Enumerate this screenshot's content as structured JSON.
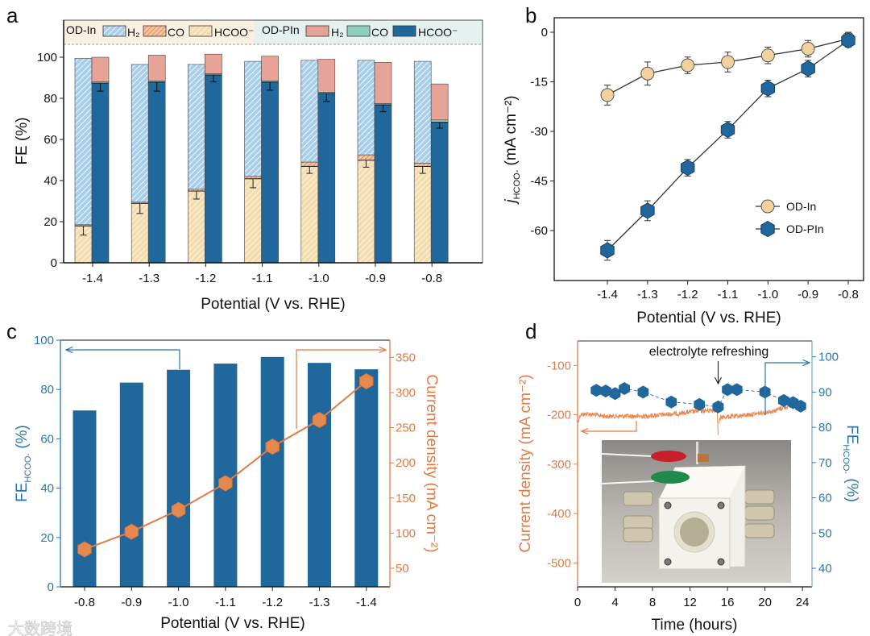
{
  "panel_labels": [
    "a",
    "b",
    "c",
    "d"
  ],
  "watermark": "大数跨境",
  "chart_data": [
    {
      "id": "a",
      "type": "bar",
      "stacked": true,
      "title": "",
      "xlabel": "Potential (V vs. RHE)",
      "ylabel": "FE (%)",
      "ylim": [
        0,
        118
      ],
      "yticks": [
        0,
        20,
        40,
        60,
        80,
        100
      ],
      "categories": [
        "-1.4",
        "-1.3",
        "-1.2",
        "-1.1",
        "-1.0",
        "-0.9",
        "-0.8"
      ],
      "legend_position": "top",
      "groups": [
        {
          "name": "OD-In",
          "series": [
            {
              "name": "HCOO⁻",
              "values": [
                18,
                29,
                35,
                41,
                47,
                50,
                47
              ],
              "error": [
                4.5,
                5,
                4,
                4.5,
                3.5,
                3.5,
                3.5
              ],
              "color": "#f3dcae"
            },
            {
              "name": "CO",
              "values": [
                0.5,
                0.5,
                0.8,
                1,
                2,
                2.5,
                1.5
              ],
              "color": "#eea57a"
            },
            {
              "name": "H₂",
              "values": [
                81,
                67,
                60.7,
                56,
                49.5,
                46,
                49.5
              ],
              "color": "#a9cfe8"
            }
          ]
        },
        {
          "name": "OD-PIn",
          "series": [
            {
              "name": "HCOO⁻",
              "values": [
                87.5,
                88,
                91.5,
                88,
                82.5,
                77,
                68.5
              ],
              "error": [
                4,
                4.5,
                3.5,
                4,
                4,
                3.5,
                3
              ],
              "color": "#20679c"
            },
            {
              "name": "CO",
              "values": [
                0.5,
                0.5,
                0.5,
                0.5,
                0.5,
                0.5,
                1
              ],
              "color": "#8fd0bd"
            },
            {
              "name": "H₂",
              "values": [
                12,
                12.5,
                9.5,
                12,
                16,
                20,
                17.5
              ],
              "color": "#e8a398"
            }
          ]
        }
      ]
    },
    {
      "id": "b",
      "type": "line",
      "title": "",
      "xlabel": "Potential (V vs. RHE)",
      "ylabel": {
        "main": "j",
        "sub": "HCOO-",
        "unit": " (mA cm⁻²)"
      },
      "x": [
        -1.4,
        -1.3,
        -1.2,
        -1.1,
        -1.0,
        -0.9,
        -0.8
      ],
      "xtick_labels": [
        "-1.4",
        "-1.3",
        "-1.2",
        "-1.1",
        "-1.0",
        "-0.9",
        "-0.8"
      ],
      "ylim": [
        -75,
        4.5
      ],
      "yticks": [
        0,
        -15,
        -30,
        -45,
        -60
      ],
      "legend_position": "center-right",
      "series": [
        {
          "name": "OD-In",
          "marker": "circle",
          "color": "#f2d19d",
          "values": [
            -19,
            -12.5,
            -10,
            -9,
            -7,
            -5,
            -2
          ],
          "error": [
            3,
            3.5,
            2.5,
            3,
            2.5,
            2.5,
            2
          ]
        },
        {
          "name": "OD-PIn",
          "marker": "hexagon",
          "color": "#20679c",
          "values": [
            -66,
            -54,
            -41,
            -29.5,
            -17,
            -11,
            -2.5
          ],
          "error": [
            3,
            3,
            2.5,
            2.5,
            2.5,
            2.5,
            2
          ]
        }
      ]
    },
    {
      "id": "c",
      "type": "bar+line",
      "title": "",
      "xlabel": "Potential (V vs. RHE)",
      "categories": [
        "-0.8",
        "-0.9",
        "-1.0",
        "-1.1",
        "-1.2",
        "-1.3",
        "-1.4"
      ],
      "left_axis": {
        "label_main": "FE",
        "label_sub": "HCOO-",
        "label_unit": " (%)",
        "ylim": [
          0,
          100
        ],
        "yticks": [
          0,
          20,
          40,
          60,
          80,
          100
        ],
        "color": "#2a76ad"
      },
      "right_axis": {
        "label": "Current density (mA cm⁻²)",
        "ylim": [
          23,
          375
        ],
        "yticks": [
          50,
          100,
          150,
          200,
          250,
          300,
          350
        ],
        "color": "#e07b45"
      },
      "series": [
        {
          "name": "FE HCOO-",
          "type": "bar",
          "axis": "left",
          "color": "#20679c",
          "values": [
            71.5,
            82.8,
            88,
            90.5,
            93.2,
            90.8,
            88.2
          ]
        },
        {
          "name": "Current density",
          "type": "line",
          "axis": "right",
          "marker": "hexagon",
          "color": "#e5894f",
          "values": [
            77,
            102,
            133,
            171,
            223,
            261,
            316
          ]
        }
      ]
    },
    {
      "id": "d",
      "type": "line+scatter",
      "title": "",
      "xlabel": "Time (hours)",
      "xlim": [
        0,
        25
      ],
      "xticks": [
        0,
        4,
        8,
        12,
        16,
        20,
        24
      ],
      "left_axis": {
        "label": "Current density (mA cm⁻²)",
        "ylim": [
          -549,
          -50
        ],
        "yticks": [
          -100,
          -200,
          -300,
          -400,
          -500
        ],
        "color": "#e07b45"
      },
      "right_axis": {
        "label_main": "FE",
        "label_sub": "HCOO-",
        "label_unit": " (%)",
        "ylim": [
          34.7,
          104.6
        ],
        "yticks": [
          40,
          50,
          60,
          70,
          80,
          90,
          100
        ],
        "color": "#2a76ad"
      },
      "annotation": "electrolyte refreshing",
      "annotation_x": 15,
      "series": [
        {
          "name": "Current density",
          "type": "line",
          "axis": "left",
          "color": "#e8894f",
          "segments": [
            [
              [
                0,
                -215
              ],
              [
                0.3,
                -200
              ],
              [
                1,
                -198
              ],
              [
                3,
                -203
              ],
              [
                5,
                -203
              ],
              [
                7,
                -203
              ],
              [
                9,
                -200
              ],
              [
                11,
                -197
              ],
              [
                13,
                -192
              ],
              [
                14.9,
                -190
              ],
              [
                15,
                -241
              ]
            ],
            [
              [
                15.1,
                -215
              ],
              [
                15.3,
                -205
              ],
              [
                17,
                -203
              ],
              [
                19,
                -198
              ],
              [
                21,
                -192
              ],
              [
                22,
                -185
              ],
              [
                22.8,
                -182
              ]
            ]
          ]
        },
        {
          "name": "FE HCOO-",
          "type": "scatter",
          "axis": "right",
          "marker": "hexagon",
          "color": "#20679c",
          "x": [
            2,
            3,
            4,
            5,
            7,
            10,
            13,
            15,
            16,
            17,
            20,
            22,
            23,
            23.8
          ],
          "values": [
            90.5,
            90.3,
            89.6,
            91,
            90,
            87.2,
            86.5,
            85.8,
            90.7,
            90.7,
            90,
            87.6,
            87,
            86
          ]
        }
      ],
      "inset": "photo of flow electrolyzer cell"
    }
  ]
}
